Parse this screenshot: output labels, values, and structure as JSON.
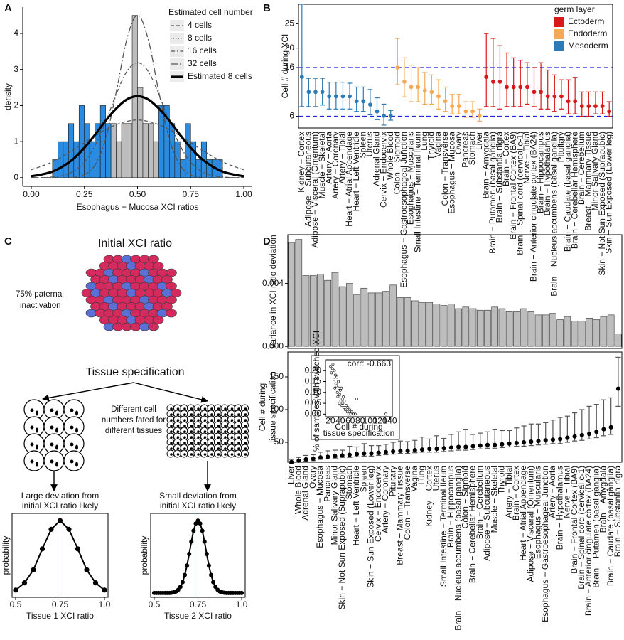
{
  "panel_labels": [
    "A",
    "B",
    "C",
    "D"
  ],
  "diagram": {
    "initial_title": "Initial XCI ratio",
    "inactivation": [
      "75% paternal",
      "inactivation"
    ],
    "specification": "Tissue specification",
    "fated": [
      "Different cell",
      "numbers fated for",
      "different tissues"
    ]
  },
  "chart_data": [
    {
      "type": "histogram",
      "xlabel": "Esophagus − Mucosa XCI ratios",
      "ylabel": "density",
      "bins": [
        0.1,
        0.125,
        0.15,
        0.175,
        0.2,
        0.225,
        0.25,
        0.275,
        0.3,
        0.325,
        0.35,
        0.375,
        0.4,
        0.425,
        0.45,
        0.475,
        0.5,
        0.525,
        0.55,
        0.575,
        0.6,
        0.625,
        0.65,
        0.675,
        0.7,
        0.725,
        0.75,
        0.775,
        0.8,
        0.825,
        0.85,
        0.875,
        0.9
      ],
      "values": [
        0.5,
        1,
        1,
        1.5,
        1,
        2,
        1.5,
        1,
        1.5,
        2,
        1.5,
        1.5,
        1,
        1.5,
        1.5,
        4.5,
        2.5,
        1.5,
        1.5,
        1,
        2,
        2,
        1.5,
        1,
        0.5,
        1.5,
        1,
        0.5,
        1,
        0.5,
        0.5,
        0.5
      ],
      "colors": [
        "#2a8be0",
        "#2a8be0",
        "#2a8be0",
        "#2a8be0",
        "#2a8be0",
        "#2a8be0",
        "#2a8be0",
        "#2a8be0",
        "#2a8be0",
        "#2a8be0",
        "#2a8be0",
        "#bdbdbd",
        "#bdbdbd",
        "#bdbdbd",
        "#bdbdbd",
        "#bdbdbd",
        "#bdbdbd",
        "#bdbdbd",
        "#bdbdbd",
        "#bdbdbd",
        "#2a8be0",
        "#2a8be0",
        "#2a8be0",
        "#2a8be0",
        "#2a8be0",
        "#2a8be0",
        "#2a8be0",
        "#2a8be0",
        "#2a8be0",
        "#2a8be0",
        "#2a8be0",
        "#2a8be0"
      ],
      "xlim": [
        -0.04,
        1.04
      ],
      "ylim": [
        -0.24,
        4.73
      ],
      "xticks": [
        {
          "value": 0,
          "label": "0.00"
        },
        0.25,
        {
          "value": 0.5,
          "label": "0.50"
        },
        0.75,
        {
          "value": 1,
          "label": "1.00"
        }
      ],
      "yticks": [
        0,
        1,
        2,
        3,
        4
      ],
      "legend_title": "Estimated cell number",
      "legend_position": "top-right",
      "curves": {
        "x": [
          0,
          0.05,
          0.1,
          0.15,
          0.2,
          0.25,
          0.3,
          0.35,
          0.4,
          0.45,
          0.5,
          0.55,
          0.6,
          0.65,
          0.7,
          0.75,
          0.8,
          0.85,
          0.9,
          0.95,
          1
        ],
        "series": [
          {
            "name": "4 cells",
            "color": "#555555",
            "width": 1.3,
            "dash": "5,3",
            "values": [
              0.22,
              0.32,
              0.44,
              0.6,
              0.78,
              0.97,
              1.16,
              1.33,
              1.47,
              1.56,
              1.6,
              1.56,
              1.47,
              1.33,
              1.16,
              0.97,
              0.78,
              0.6,
              0.44,
              0.32,
              0.22
            ]
          },
          {
            "name": "8 cells",
            "color": "#555555",
            "width": 1.3,
            "dash": "1.5,2",
            "values": [
              0.04,
              0.09,
              0.17,
              0.32,
              0.53,
              0.83,
              1.19,
              1.58,
              1.92,
              2.17,
              2.26,
              2.17,
              1.92,
              1.58,
              1.19,
              0.83,
              0.53,
              0.32,
              0.17,
              0.09,
              0.04
            ]
          },
          {
            "name": "16 cells",
            "color": "#555555",
            "width": 1.3,
            "dash": "6,3,1.5,3",
            "values": [
              0,
              0,
              0.02,
              0.06,
              0.18,
              0.43,
              0.89,
              1.55,
              2.32,
              2.95,
              3.19,
              2.95,
              2.32,
              1.55,
              0.89,
              0.43,
              0.18,
              0.06,
              0.02,
              0,
              0
            ]
          },
          {
            "name": "32 cells",
            "color": "#555555",
            "width": 1.3,
            "dash": "10,3,2,3",
            "values": [
              0,
              0,
              0,
              0,
              0.01,
              0.08,
              0.35,
              1.07,
              2.38,
              3.84,
              4.51,
              3.84,
              2.38,
              1.07,
              0.35,
              0.08,
              0.01,
              0,
              0,
              0,
              0
            ]
          },
          {
            "name": "Estimated 8 cells",
            "color": "#000000",
            "width": 3.2,
            "values": [
              0.04,
              0.09,
              0.17,
              0.32,
              0.53,
              0.83,
              1.19,
              1.58,
              1.92,
              2.17,
              2.26,
              2.17,
              1.92,
              1.58,
              1.19,
              0.83,
              0.53,
              0.32,
              0.17,
              0.09,
              0.04
            ]
          }
        ]
      }
    },
    {
      "type": "errorbar",
      "ylabel": "Cell # during XCI",
      "ylim": [
        3.6,
        29
      ],
      "yticks": [
        6,
        16,
        20,
        25
      ],
      "hlines": [
        6,
        16
      ],
      "legend_title": "germ layer",
      "legend_position": "top-right",
      "series": [
        {
          "name": "Ectoderm",
          "color": "#d7191c",
          "categories": [
            "Brain − Amygdala",
            "Brain − Putamen (basal ganglia)",
            "Brain − Substantia nigra",
            "Brain − Cortex",
            "Brain − Frontal Cortex (BA9)",
            "Brain − Spinal cord (cervical c-1)",
            "Nerve − Tibial",
            "Brain − Anterior cingulate cortex (BA24)",
            "Brain − Hippocampus",
            "Brain − Hypothalamus",
            "Brain − Nucleus accumbens (basal ganglia)",
            "Pituitary",
            "Brain − Caudate (basal ganglia)",
            "Brain − Cerebellar Hemisphere",
            "Brain − Cerebellum",
            "Breast − Mammary Tissue",
            "Minor Salivary Gland",
            "Skin − Not Sun Exposed (Suprapubic)",
            "Skin − Sun Exposed (Lower leg)"
          ],
          "values": [
            14.1,
            13.1,
            13.1,
            12,
            12,
            12,
            12,
            11,
            11,
            10.1,
            10.1,
            10.1,
            9.1,
            9.1,
            8.1,
            8.1,
            8.1,
            8.1,
            7
          ],
          "lower": [
            8,
            8,
            7.5,
            8,
            8,
            8,
            8.5,
            8,
            7.5,
            7.5,
            7,
            7.5,
            6.5,
            6.5,
            6,
            6,
            6.5,
            6.5,
            6
          ],
          "upper": [
            23,
            22,
            20.5,
            19,
            18,
            17.5,
            17,
            16,
            17,
            15.5,
            14.5,
            13.5,
            13.5,
            14,
            11,
            11,
            11,
            11,
            9
          ]
        },
        {
          "name": "Endoderm",
          "color": "#f5a955",
          "categories": [
            "Colon − Sigmoid",
            "Esophagus − Gastroesophageal Junction",
            "Esophagus − Muscularis",
            "Small Intestine − Terminal Ileum",
            "Lung",
            "Thyroid",
            "Vagina",
            "Colon − Transverse",
            "Esophagus − Mucosa",
            "Ovary",
            "Pancreas",
            "Stomach",
            "Liver"
          ],
          "values": [
            16,
            13.1,
            12,
            12,
            11.3,
            11,
            10.1,
            9.1,
            8.1,
            8.1,
            7,
            7,
            6.1
          ],
          "lower": [
            12.5,
            10,
            9,
            9,
            8.5,
            8.5,
            7.5,
            7,
            6.5,
            6.5,
            5.8,
            5.8,
            5
          ],
          "upper": [
            22,
            18,
            16.5,
            16,
            15,
            14.5,
            13.5,
            12,
            10.5,
            10.5,
            9,
            9,
            7.5
          ]
        },
        {
          "name": "Mesoderm",
          "color": "#2c7bb6",
          "categories": [
            "Kidney − Cortex",
            "Adipose − Subcutaneous",
            "Adipose − Visceral (Omentum)",
            "Muscle − Skeletal",
            "Artery − Aorta",
            "Artery − Coronary",
            "Artery − Tibial",
            "Heart − Atrial Appendage",
            "Heart − Left Ventricle",
            "Spleen",
            "Uterus",
            "Adrenal Gland",
            "Cervix − Endocervix",
            "Whole Blood"
          ],
          "values": [
            14.1,
            11,
            11,
            11,
            10.1,
            10.1,
            10.1,
            10.1,
            9.1,
            9.1,
            8.4,
            7,
            6.1,
            6.1
          ],
          "lower": [
            8,
            8,
            8,
            8.3,
            7.5,
            7.5,
            7.5,
            7.5,
            7,
            7,
            6.3,
            5.3,
            4.2,
            5.2
          ],
          "upper": [
            29,
            13.8,
            13.8,
            13.8,
            13,
            13,
            13,
            12.8,
            12,
            12,
            11.5,
            9.8,
            8.5,
            7.2
          ]
        }
      ]
    },
    {
      "type": "line",
      "title": [
        "Large deviation from",
        "initial XCI ratio likely"
      ],
      "xlabel": "Tissue 1 XCI ratio",
      "ylabel": "probability",
      "x": [
        0.5,
        0.55,
        0.6,
        0.65,
        0.7,
        0.75,
        0.8,
        0.85,
        0.9,
        0.95,
        1
      ],
      "values": [
        0.04,
        0.14,
        0.32,
        0.61,
        0.88,
        1,
        0.88,
        0.61,
        0.32,
        0.14,
        0.04
      ],
      "xlim": [
        0.48,
        1.02
      ],
      "ylim": [
        -0.06,
        1.1
      ],
      "xticks": [
        0.5,
        0.75,
        {
          "value": 1,
          "label": "1.0"
        }
      ],
      "vline": 0.75,
      "color": "#000000"
    },
    {
      "type": "line",
      "title": [
        "Small deviation from",
        "initial XCI ratio likely"
      ],
      "xlabel": "Tissue 2 XCI ratio",
      "ylabel": "probability",
      "x": [
        0.5,
        0.5125,
        0.525,
        0.5375,
        0.55,
        0.5625,
        0.575,
        0.5875,
        0.6,
        0.6125,
        0.625,
        0.6375,
        0.65,
        0.6625,
        0.675,
        0.6875,
        0.7,
        0.7125,
        0.725,
        0.7375,
        0.75,
        0.7625,
        0.775,
        0.7875,
        0.8,
        0.8125,
        0.825,
        0.8375,
        0.85,
        0.8625,
        0.875,
        0.8875,
        0.9,
        0.9125,
        0.925,
        0.9375,
        0.95,
        0.9625,
        0.975,
        0.9875,
        1
      ],
      "values": [
        0,
        0,
        0,
        0,
        0,
        0,
        0,
        0,
        0.004,
        0.01,
        0.021,
        0.044,
        0.085,
        0.15,
        0.25,
        0.38,
        0.54,
        0.71,
        0.86,
        0.96,
        1,
        0.96,
        0.86,
        0.71,
        0.54,
        0.38,
        0.25,
        0.15,
        0.085,
        0.044,
        0.021,
        0.01,
        0.004,
        0,
        0,
        0,
        0,
        0,
        0,
        0,
        0
      ],
      "xlim": [
        0.48,
        1.02
      ],
      "ylim": [
        -0.06,
        1.1
      ],
      "xticks": [
        0.5,
        0.75,
        {
          "value": 1,
          "label": "1.0"
        }
      ],
      "vline": 0.75,
      "color": "#000000"
    },
    {
      "type": "bar",
      "ylabel": "variance in XCI ratio deviation",
      "color": "#bdbdbd",
      "values": [
        0.0066,
        0.0068,
        0.0045,
        0.0045,
        0.0046,
        0.0042,
        0.0047,
        0.0038,
        0.004,
        0.0033,
        0.0037,
        0.0034,
        0.0034,
        0.0035,
        0.0039,
        0.0031,
        0.0031,
        0.0029,
        0.0028,
        0.0028,
        0.0027,
        0.0026,
        0.0027,
        0.0024,
        0.0025,
        0.0024,
        0.0023,
        0.0023,
        0.0025,
        0.0024,
        0.0022,
        0.0022,
        0.0024,
        0.0022,
        0.002,
        0.002,
        0.0021,
        0.0017,
        0.0019,
        0.0016,
        0.0016,
        0.0018,
        0.0017,
        0.0019,
        0.002,
        0.0008
      ],
      "ylim": [
        -0.00013,
        0.0071
      ],
      "yticks": [
        {
          "value": 0,
          "label": "0.000"
        },
        0.004
      ]
    },
    {
      "type": "errorbar",
      "ylabel": [
        "Cell # during",
        "tissue specification"
      ],
      "color": "#000000",
      "categories": [
        "Liver",
        "Whole Blood",
        "Adrenal Gland",
        "Ovary",
        "Esophagus − Mucosa",
        "Pancreas",
        "Minor Salivary Gland",
        "Skin − Not Sun Exposed (Suprapubic)",
        "Stomach",
        "Heart − Left Ventricle",
        "Spleen",
        "Skin − Sun Exposed (Lower leg)",
        "Cervix − Endocervix",
        "Artery − Coronary",
        "Pituitary",
        "Breast − Mammary Tissue",
        "Colon − Transverse",
        "Vagina",
        "Lung",
        "Kidney − Cortex",
        "Uterus",
        "Small Intestine − Terminal Ileum",
        "Brain − Hippocampus",
        "Brain − Nucleus accumbens (basal ganglia)",
        "Colon − Sigmoid",
        "Brain − Cerebellar Hemisphere",
        "Brain − Cerebellum",
        "Adipose − Subcutaneous",
        "Muscle − Skeletal",
        "Thyroid",
        "Artery − Tibial",
        "Brain − Cortex",
        "Heart − Atrial Appendage",
        "Adipose − Visceral (Omentum)",
        "Esophagus − Muscularis",
        "Esophagus − Gastroesophageal Junction",
        "Artery − Aorta",
        "Brain − Hypothalamus",
        "Nerve − Tibial",
        "Brain − Frontal Cortex (BA9)",
        "Brain − Spinal cord (cervical c-1)",
        "Brain − Anterior cingulate cortex (BA24)",
        "Brain − Putamen (basal ganglia)",
        "Brain − Amygdala",
        "Brain − Caudate (basal ganglia)",
        "Brain − Substantia nigra"
      ],
      "values": [
        20,
        22,
        24,
        25,
        27,
        28,
        29,
        30,
        31,
        32,
        33,
        33,
        34,
        35,
        36,
        37,
        37,
        38,
        39,
        40,
        40,
        41,
        42,
        43,
        43,
        44,
        45,
        46,
        46,
        47,
        48,
        49,
        50,
        51,
        52,
        53,
        54,
        55,
        57,
        59,
        61,
        63,
        66,
        70,
        73,
        132
      ],
      "lower": [
        18,
        20,
        21,
        22,
        24,
        25,
        26,
        27,
        27,
        28,
        29,
        29,
        30,
        31,
        32,
        33,
        33,
        34,
        35,
        35,
        35,
        36,
        37,
        38,
        38,
        39,
        40,
        41,
        41,
        42,
        43,
        44,
        44,
        45,
        46,
        47,
        48,
        48,
        50,
        52,
        53,
        55,
        57,
        60,
        62,
        105
      ],
      "upper": [
        24,
        27,
        30,
        31,
        35,
        37,
        38,
        38,
        44,
        43,
        48,
        45,
        45,
        47,
        50,
        52,
        51,
        53,
        58,
        55,
        60,
        56,
        62,
        66,
        70,
        62,
        64,
        66,
        70,
        68,
        68,
        72,
        75,
        78,
        78,
        80,
        84,
        88,
        90,
        95,
        100,
        105,
        108,
        115,
        118,
        180
      ],
      "ylim": [
        19.6,
        188
      ],
      "yticks": [
        50,
        100,
        150
      ]
    },
    {
      "type": "scatter",
      "annotation": "corr: -0.663",
      "xlabel": [
        "Cell # during",
        "tissue specification"
      ],
      "ylabel": "% of samples with switched XCI",
      "x": [
        20,
        22,
        24,
        25,
        27,
        28,
        29,
        30,
        31,
        32,
        33,
        34,
        35,
        36,
        37,
        38,
        39,
        40,
        41,
        42,
        43,
        44,
        45,
        46,
        47,
        48,
        50,
        52,
        54,
        55,
        57,
        59,
        61,
        63,
        66,
        70,
        73,
        132
      ],
      "y": [
        0.22,
        0.19,
        0.21,
        0.23,
        0.16,
        0.2,
        0.12,
        0.18,
        0.14,
        0.13,
        0.17,
        0.1,
        0.08,
        0.15,
        0.12,
        0.05,
        0.09,
        0.11,
        0.06,
        0.12,
        0.04,
        0.07,
        0.05,
        0.08,
        0.03,
        0.06,
        0.02,
        0.04,
        0.01,
        0.03,
        0,
        0.02,
        0,
        0.01,
        0,
        0,
        0.07,
        0
      ],
      "xlim": [
        10,
        145
      ],
      "ylim": [
        -0.012,
        0.25
      ],
      "xticks": [
        20,
        40,
        60,
        80,
        100,
        120,
        140
      ],
      "yticks": [
        {
          "value": 0,
          "label": "0.00"
        },
        0.05,
        {
          "value": 0.1,
          "label": "0.10"
        },
        0.15,
        {
          "value": 0.2,
          "label": "0.20"
        }
      ]
    }
  ]
}
